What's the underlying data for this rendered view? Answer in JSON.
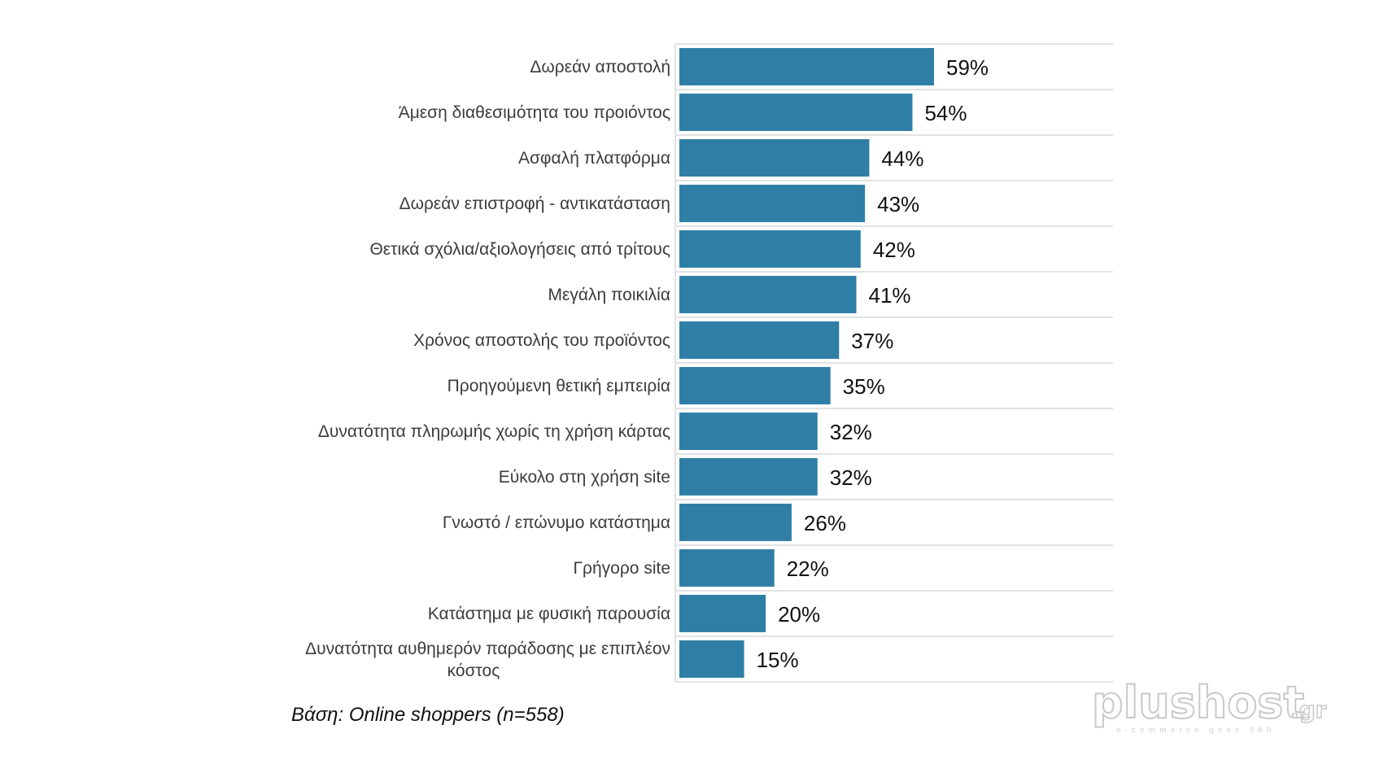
{
  "chart_data": {
    "type": "bar",
    "orientation": "horizontal",
    "categories": [
      "Δωρεάν αποστολή",
      "Άμεση διαθεσιμότητα του προιόντος",
      "Ασφαλή πλατφόρμα",
      "Δωρεάν επιστροφή - αντικατάσταση",
      "Θετικά σχόλια/αξιολογήσεις από τρίτους",
      "Μεγάλη ποικιλία",
      "Χρόνος αποστολής του προϊόντος",
      "Προηγούμενη θετική εμπειρία",
      "Δυνατότητα πληρωμής χωρίς τη χρήση κάρτας",
      "Εύκολο στη χρήση site",
      "Γνωστό / επώνυμο κατάστημα",
      "Γρήγορο site",
      "Κατάστημα με φυσική παρουσία",
      "Δυνατότητα αυθημερόν παράδοσης με επιπλέον κόστος"
    ],
    "values": [
      59,
      54,
      44,
      43,
      42,
      41,
      37,
      35,
      32,
      32,
      26,
      22,
      20,
      15
    ],
    "value_labels": [
      "59%",
      "54%",
      "44%",
      "43%",
      "42%",
      "41%",
      "37%",
      "35%",
      "32%",
      "32%",
      "26%",
      "22%",
      "20%",
      "15%"
    ],
    "xlim": [
      0,
      100
    ],
    "grid": true,
    "bar_color": "#2e7ea6",
    "grid_color": "#d9d9d9"
  },
  "footnote": "Βάση: Online shoppers (n=558)",
  "logo": {
    "word": "plushost",
    "tld": ".gr",
    "tagline": "e-commerce goes 360"
  }
}
